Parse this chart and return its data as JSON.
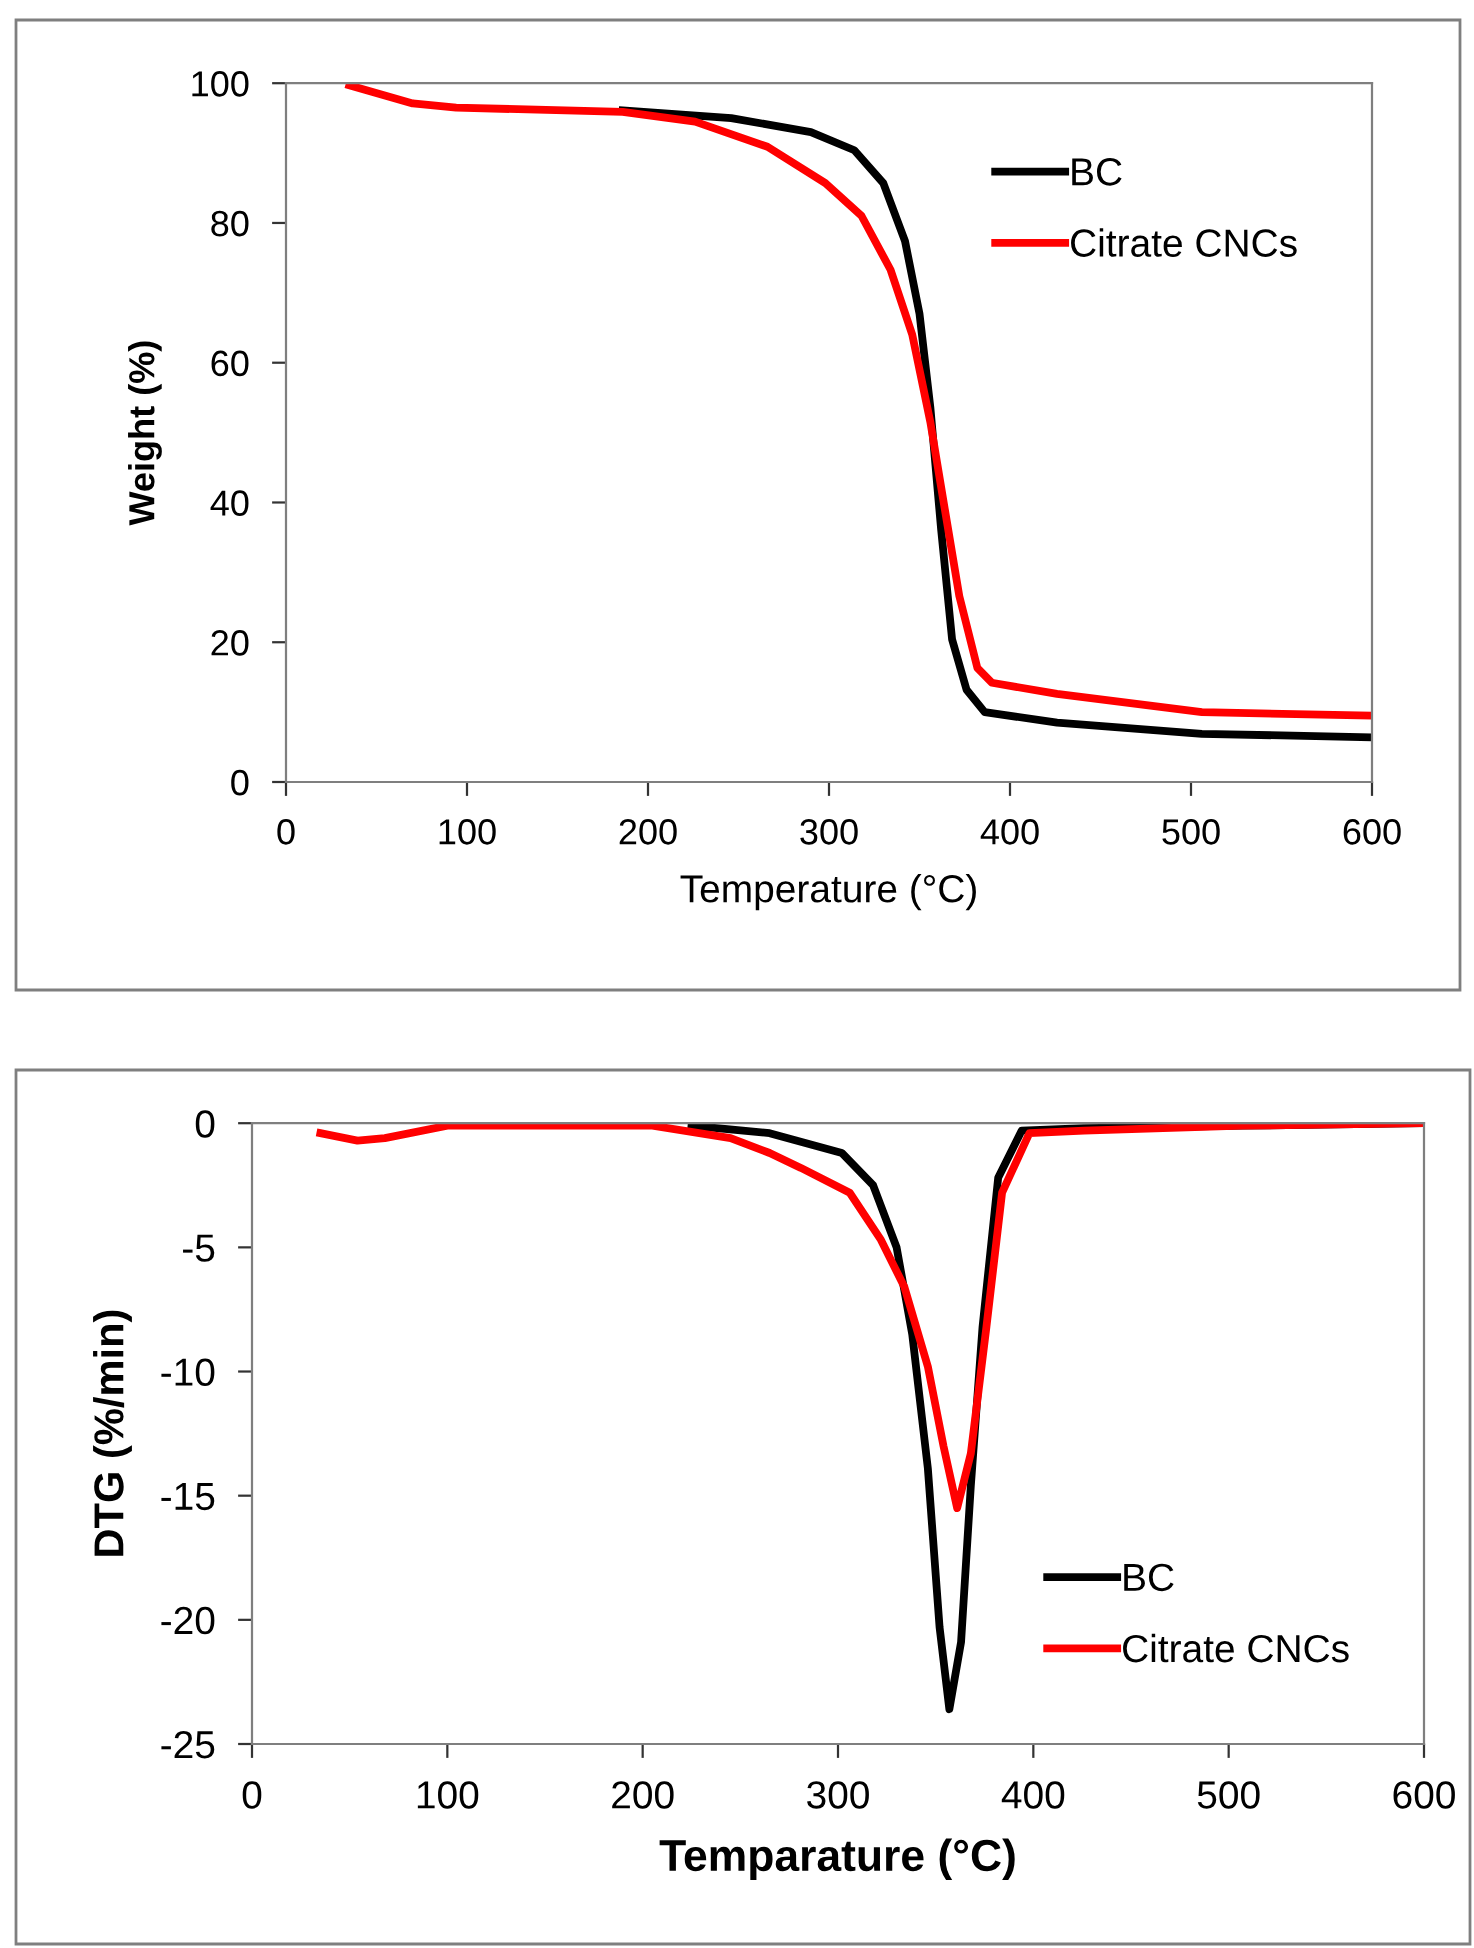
{
  "chart_data": [
    {
      "type": "line",
      "xlabel": "Temperature (°C)",
      "ylabel": "Weight (%)",
      "xlim": [
        0,
        600
      ],
      "ylim": [
        0,
        100
      ],
      "xticks": [
        0,
        100,
        200,
        300,
        400,
        500,
        600
      ],
      "yticks": [
        0,
        20,
        40,
        60,
        80,
        100
      ],
      "grid": false,
      "legend": "top right",
      "marker": "none",
      "line_style": "solid",
      "series": [
        {
          "name": "BC",
          "color": "#000000",
          "x": [
            186,
            246,
            290,
            314,
            330,
            342,
            350,
            356,
            362,
            368,
            376,
            386,
            426,
            506,
            598
          ],
          "values": [
            96.1,
            95.0,
            93,
            90.4,
            85.7,
            77.4,
            67,
            53.6,
            36,
            20.4,
            13.2,
            10,
            8.5,
            6.9,
            6.4
          ]
        },
        {
          "name": "Citrate CNCs",
          "color": "#ff0000",
          "x": [
            35,
            70,
            94,
            186,
            226,
            266,
            298,
            318,
            334,
            346,
            356,
            364,
            372,
            382,
            390,
            426,
            506,
            598
          ],
          "values": [
            99.7,
            97.1,
            96.5,
            95.9,
            94.5,
            90.9,
            85.7,
            81,
            73.3,
            64,
            51.5,
            39,
            26.6,
            16.3,
            14.2,
            12.6,
            10,
            9.5
          ]
        }
      ]
    },
    {
      "type": "line",
      "xlabel": "Temparature (°C)",
      "ylabel": "DTG (%/min)",
      "xlim": [
        0,
        600
      ],
      "ylim": [
        -25,
        0
      ],
      "xticks": [
        0,
        100,
        200,
        300,
        400,
        500,
        600
      ],
      "yticks": [
        -25,
        -20,
        -15,
        -10,
        -5,
        0
      ],
      "grid": false,
      "legend": "bottom right",
      "marker": "none",
      "line_style": "solid",
      "series": [
        {
          "name": "BC",
          "color": "#000000",
          "x": [
            225,
            265,
            302,
            318,
            330,
            338,
            346,
            352,
            357,
            363,
            368,
            374,
            382,
            394,
            426,
            507,
            599
          ],
          "values": [
            -0.1,
            -0.4,
            -1.2,
            -2.5,
            -5,
            -8.5,
            -13.9,
            -20.3,
            -23.6,
            -20.9,
            -14.6,
            -8.2,
            -2.2,
            -0.3,
            -0.2,
            -0.1,
            0
          ]
        },
        {
          "name": "Citrate CNCs",
          "color": "#ff0000",
          "x": [
            35,
            54,
            68,
            100,
            205,
            245,
            265,
            281,
            306,
            322,
            334,
            346,
            354,
            361,
            368,
            376,
            384,
            398,
            426,
            507,
            599
          ],
          "values": [
            -0.4,
            -0.7,
            -0.6,
            -0.1,
            -0.1,
            -0.6,
            -1.2,
            -1.8,
            -2.8,
            -4.7,
            -6.6,
            -9.8,
            -13,
            -15.5,
            -13.3,
            -8.2,
            -2.8,
            -0.4,
            -0.3,
            -0.1,
            0
          ]
        }
      ]
    }
  ]
}
